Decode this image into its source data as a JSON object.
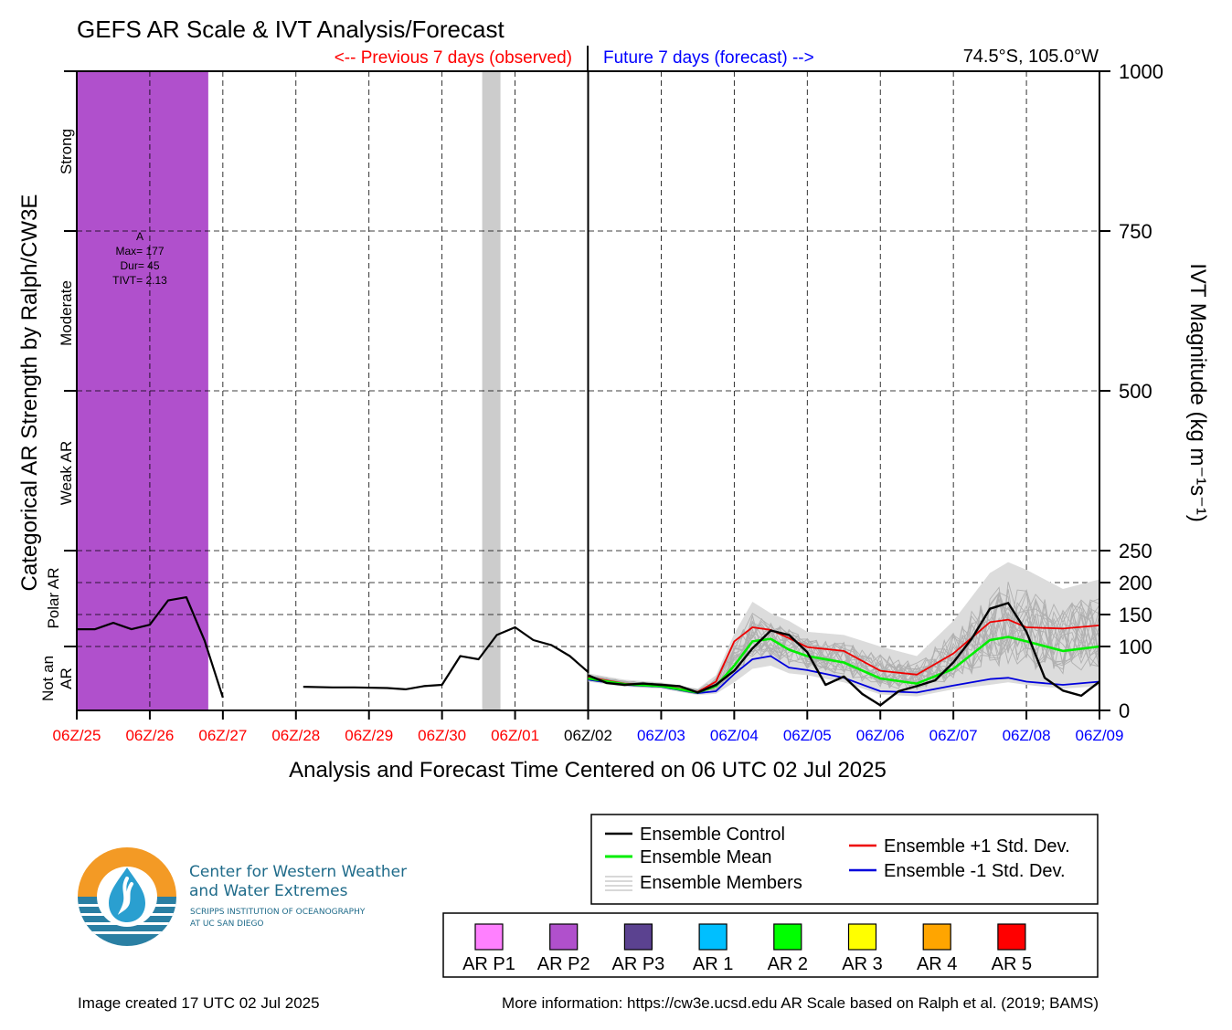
{
  "title": "GEFS AR Scale & IVT Analysis/Forecast",
  "header": {
    "previous_label": "<-- Previous 7 days (observed)",
    "future_label": "Future 7 days (forecast) -->",
    "location": "74.5°S, 105.0°W"
  },
  "colors": {
    "observed": "#ff0000",
    "forecast": "#0000ff",
    "ar_p2_band": "#b050cc",
    "highlight_band": "#cccccc",
    "control": "#000000",
    "mean": "#00ee00",
    "plus_std": "#ee0000",
    "minus_std": "#0000dd",
    "members": "#b0b0b0"
  },
  "left_axis": {
    "label": "Categorical AR Strength by Ralph/CW3E",
    "categories": [
      "Strong",
      "Moderate",
      "Weak AR",
      "Polar AR",
      "Not an AR"
    ]
  },
  "ar_annotation": {
    "lines": [
      "A",
      "Max= 177",
      "Dur= 45",
      "TIVT= 2.13"
    ]
  },
  "chart_data": {
    "type": "line",
    "title": "GEFS AR Scale & IVT Analysis/Forecast",
    "xlabel": "Analysis and Forecast Time Centered on 06 UTC 02 Jul 2025",
    "ylabel": "IVT Magnitude (kg m⁻¹s⁻¹)",
    "ylim": [
      0,
      1000
    ],
    "y_ticks": [
      0,
      100,
      150,
      200,
      250,
      500,
      750,
      1000
    ],
    "y_axis_scale": "piecewise: 0-250 compressed by factor 2 relative to 250-1000",
    "x_ticks": [
      "06Z/25",
      "06Z/26",
      "06Z/27",
      "06Z/28",
      "06Z/29",
      "06Z/30",
      "06Z/01",
      "06Z/02",
      "06Z/03",
      "06Z/04",
      "06Z/05",
      "06Z/06",
      "06Z/07",
      "06Z/08",
      "06Z/09"
    ],
    "x_tick_colors": [
      "#ff0000",
      "#ff0000",
      "#ff0000",
      "#ff0000",
      "#ff0000",
      "#ff0000",
      "#ff0000",
      "#000000",
      "#0000ff",
      "#0000ff",
      "#0000ff",
      "#0000ff",
      "#0000ff",
      "#0000ff",
      "#0000ff"
    ],
    "x_units": "days relative to 06Z/25",
    "grid": true,
    "shaded_regions": [
      {
        "label": "AR P2",
        "x_start": 0,
        "x_end": 1.8
      },
      {
        "label": "",
        "x_start": 5.55,
        "x_end": 5.8
      }
    ],
    "observed_series": {
      "name": "Analysis",
      "x": [
        0,
        0.25,
        0.5,
        0.75,
        1.0,
        1.25,
        1.5,
        1.75,
        2.0,
        3.1,
        3.5,
        3.8,
        4.25,
        4.5,
        4.75,
        5.0,
        5.25,
        5.5,
        5.75,
        6.0,
        6.25,
        6.5,
        6.75,
        7.0
      ],
      "values": [
        127,
        127,
        137,
        127,
        134,
        172,
        177,
        109,
        20,
        37,
        36,
        36,
        35,
        33,
        38,
        40,
        85,
        80,
        118,
        130,
        110,
        102,
        85,
        60
      ]
    },
    "series": [
      {
        "name": "Ensemble Control",
        "x": [
          7.0,
          7.25,
          7.5,
          7.75,
          8.0,
          8.25,
          8.5,
          8.75,
          9.0,
          9.25,
          9.5,
          9.75,
          10.0,
          10.25,
          10.5,
          10.75,
          11.0,
          11.25,
          11.5,
          11.75,
          12.0,
          12.25,
          12.5,
          12.75,
          13.0,
          13.25,
          13.5,
          13.75,
          14.0
        ],
        "values": [
          55,
          43,
          40,
          42,
          40,
          38,
          28,
          40,
          62,
          97,
          125,
          118,
          91,
          40,
          53,
          26,
          8,
          30,
          38,
          47,
          75,
          112,
          159,
          168,
          123,
          51,
          31,
          23,
          45
        ]
      },
      {
        "name": "Ensemble Mean",
        "x": [
          7.0,
          7.5,
          8.0,
          8.5,
          8.75,
          9.0,
          9.25,
          9.5,
          9.75,
          10.0,
          10.5,
          11.0,
          11.5,
          12.0,
          12.5,
          12.75,
          13.0,
          13.5,
          14.0
        ],
        "values": [
          50,
          41,
          38,
          28,
          38,
          70,
          108,
          112,
          95,
          85,
          75,
          50,
          42,
          65,
          110,
          115,
          108,
          93,
          100
        ]
      },
      {
        "name": "Ensemble +1 Std. Dev.",
        "x": [
          7.0,
          7.5,
          8.0,
          8.5,
          8.75,
          9.0,
          9.25,
          9.5,
          9.75,
          10.0,
          10.5,
          11.0,
          11.5,
          12.0,
          12.5,
          12.75,
          13.0,
          13.5,
          14.0
        ],
        "values": [
          52,
          42,
          39,
          29,
          45,
          108,
          130,
          126,
          113,
          99,
          93,
          62,
          56,
          89,
          138,
          142,
          130,
          128,
          133
        ]
      },
      {
        "name": "Ensemble -1 Std. Dev.",
        "x": [
          7.0,
          7.5,
          8.0,
          8.5,
          8.75,
          9.0,
          9.25,
          9.5,
          9.75,
          10.0,
          10.5,
          11.0,
          11.5,
          12.0,
          12.5,
          12.75,
          13.0,
          13.5,
          14.0
        ],
        "values": [
          48,
          40,
          37,
          27,
          30,
          57,
          80,
          85,
          67,
          63,
          51,
          30,
          28,
          39,
          49,
          51,
          45,
          40,
          45
        ]
      }
    ],
    "members_range": {
      "name": "Ensemble Members",
      "x": [
        7.0,
        7.5,
        8.0,
        8.5,
        8.75,
        9.0,
        9.25,
        9.5,
        9.75,
        10.0,
        10.5,
        11.0,
        11.5,
        12.0,
        12.5,
        12.75,
        13.0,
        13.5,
        14.0
      ],
      "low": [
        45,
        37,
        34,
        24,
        26,
        44,
        65,
        70,
        58,
        55,
        44,
        25,
        22,
        33,
        40,
        44,
        40,
        34,
        38
      ],
      "high": [
        58,
        48,
        44,
        34,
        55,
        120,
        170,
        152,
        140,
        123,
        118,
        100,
        85,
        140,
        215,
        232,
        220,
        190,
        205
      ]
    }
  },
  "legend": {
    "items": [
      "Ensemble Control",
      "Ensemble Mean",
      "Ensemble Members",
      "Ensemble +1 Std. Dev.",
      "Ensemble -1 Std. Dev."
    ]
  },
  "ar_scale_legend": {
    "items": [
      {
        "label": "AR P1",
        "color": "#ff80ff"
      },
      {
        "label": "AR P2",
        "color": "#b050cc"
      },
      {
        "label": "AR P3",
        "color": "#5b4290"
      },
      {
        "label": "AR 1",
        "color": "#00bfff"
      },
      {
        "label": "AR 2",
        "color": "#00ff00"
      },
      {
        "label": "AR 3",
        "color": "#ffff00"
      },
      {
        "label": "AR 4",
        "color": "#ffa500"
      },
      {
        "label": "AR 5",
        "color": "#ff0000"
      }
    ]
  },
  "logo": {
    "line1": "Center for Western Weather",
    "line2": "and Water Extremes",
    "line3": "SCRIPPS INSTITUTION OF OCEANOGRAPHY",
    "line4": "AT UC SAN DIEGO"
  },
  "footer": {
    "created": "Image created 17 UTC 02 Jul 2025",
    "more_info": "More information: https://cw3e.ucsd.edu AR Scale based on Ralph et al. (2019; BAMS)"
  }
}
